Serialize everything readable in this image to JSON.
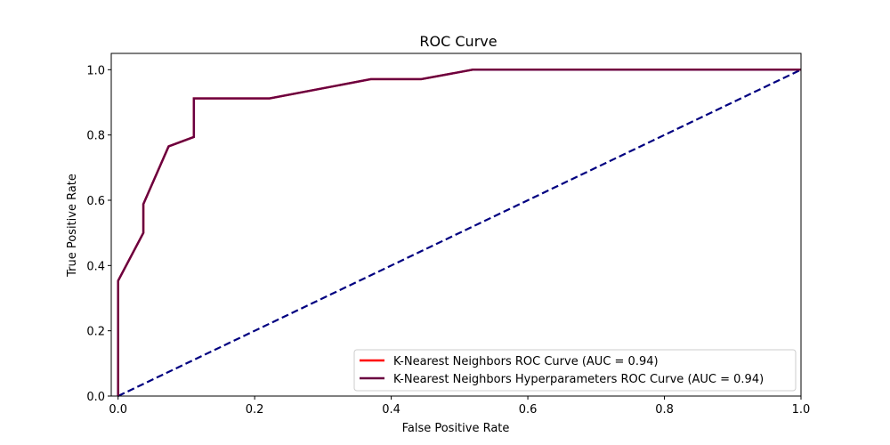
{
  "chart_data": {
    "type": "line",
    "title": "ROC Curve",
    "xlabel": "False Positive Rate",
    "ylabel": "True Positive Rate",
    "xlim": [
      -0.01,
      1.0
    ],
    "ylim": [
      0.0,
      1.05
    ],
    "xticks": [
      "0.0",
      "0.2",
      "0.4",
      "0.6",
      "0.8",
      "1.0"
    ],
    "yticks": [
      "0.0",
      "0.2",
      "0.4",
      "0.6",
      "0.8",
      "1.0"
    ],
    "grid": false,
    "legend_position": "lower-right",
    "series": [
      {
        "name": "K-Nearest Neighbors ROC Curve (AUC = 0.94)",
        "color": "#ff0000",
        "style": "solid",
        "x": [
          0.0,
          0.0,
          0.037,
          0.037,
          0.074,
          0.111,
          0.111,
          0.222,
          0.37,
          0.444,
          0.519,
          1.0
        ],
        "y": [
          0.0,
          0.353,
          0.5,
          0.588,
          0.765,
          0.794,
          0.912,
          0.912,
          0.971,
          0.971,
          1.0,
          1.0
        ]
      },
      {
        "name": "K-Nearest Neighbors Hyperparameters ROC Curve (AUC = 0.94)",
        "color": "#6a0040",
        "style": "solid",
        "x": [
          0.0,
          0.0,
          0.037,
          0.037,
          0.074,
          0.111,
          0.111,
          0.222,
          0.37,
          0.444,
          0.519,
          1.0
        ],
        "y": [
          0.0,
          0.353,
          0.5,
          0.588,
          0.765,
          0.794,
          0.912,
          0.912,
          0.971,
          0.971,
          1.0,
          1.0
        ]
      }
    ],
    "reference_line": {
      "color": "#000080",
      "style": "dashed",
      "x": [
        0.0,
        1.0
      ],
      "y": [
        0.0,
        1.0
      ]
    }
  }
}
